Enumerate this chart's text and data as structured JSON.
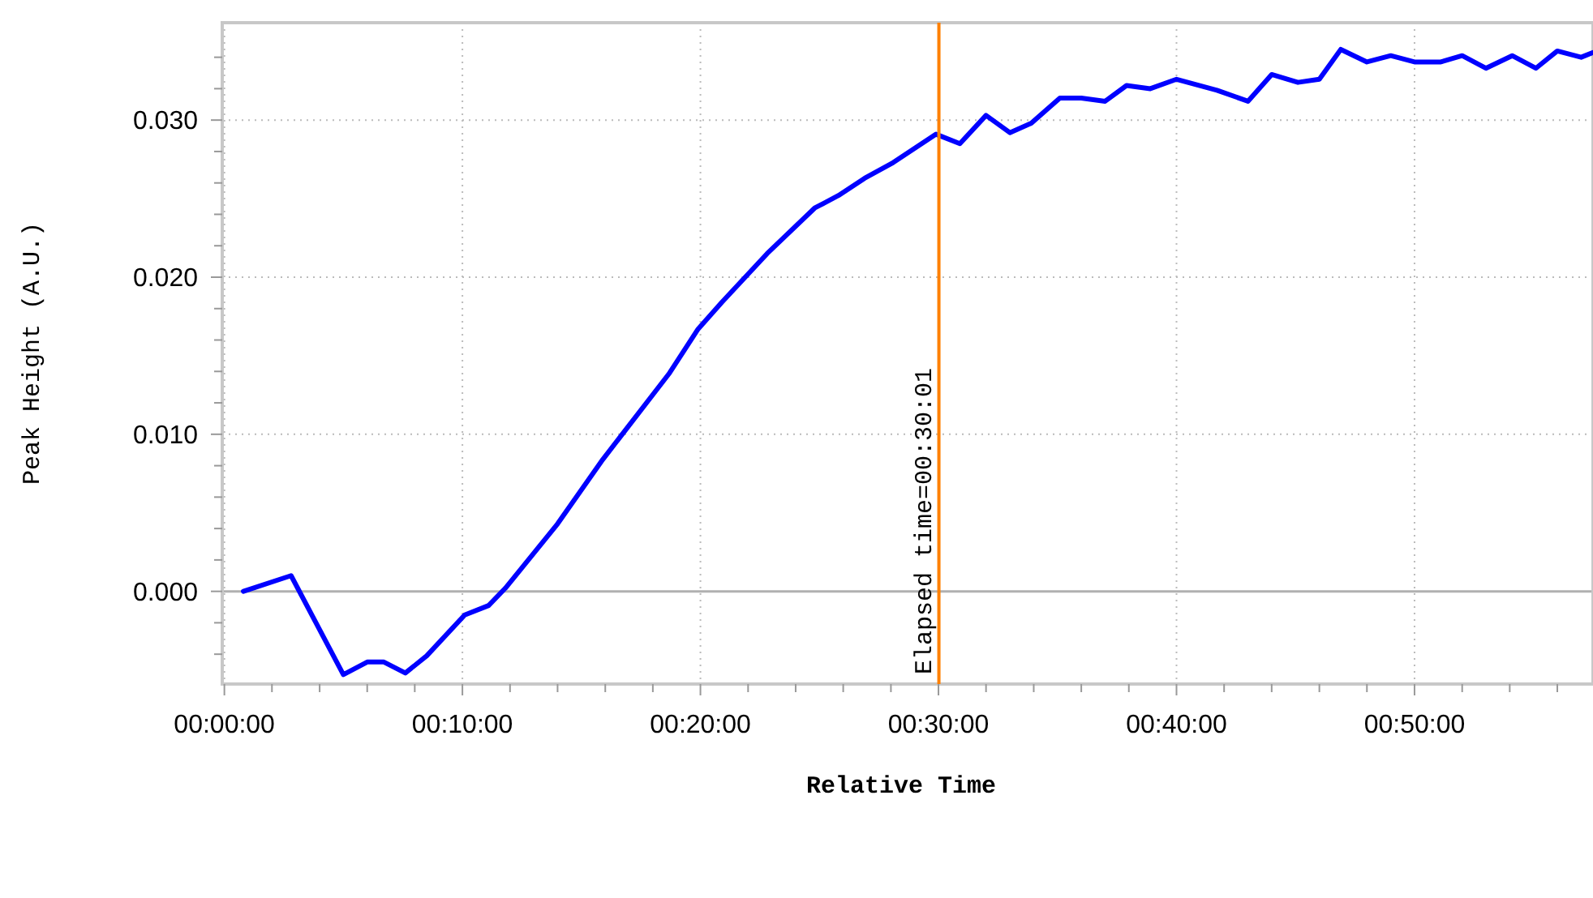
{
  "chart_data": {
    "type": "line",
    "xlabel": "Relative Time",
    "ylabel": "Peak Height (A.U.)",
    "x": [
      0.0133,
      0.0467,
      0.0833,
      0.1,
      0.1117,
      0.1267,
      0.1417,
      0.1683,
      0.185,
      0.1967,
      0.2333,
      0.265,
      0.3117,
      0.3317,
      0.3483,
      0.38,
      0.4133,
      0.43,
      0.4483,
      0.4683,
      0.4983,
      0.515,
      0.5333,
      0.55,
      0.565,
      0.585,
      0.6,
      0.6167,
      0.6317,
      0.6483,
      0.6667,
      0.695,
      0.7167,
      0.7333,
      0.7517,
      0.7667,
      0.7817,
      0.8,
      0.8167,
      0.8333,
      0.8517,
      0.8667,
      0.8833,
      0.9017,
      0.9183,
      0.9333,
      0.95,
      0.9583
    ],
    "series": [
      {
        "color": "#0000ff",
        "values": [
          0.0,
          0.001,
          -0.0053,
          -0.0045,
          -0.0045,
          -0.0052,
          -0.0041,
          -0.0015,
          -0.0009,
          0.0002,
          0.0043,
          0.0084,
          0.0139,
          0.0167,
          0.0184,
          0.0215,
          0.0244,
          0.0252,
          0.0263,
          0.0273,
          0.0291,
          0.0285,
          0.0303,
          0.0292,
          0.0298,
          0.0314,
          0.0314,
          0.0312,
          0.0322,
          0.032,
          0.0326,
          0.0319,
          0.0312,
          0.0329,
          0.0324,
          0.0326,
          0.0345,
          0.0337,
          0.0341,
          0.0337,
          0.0337,
          0.0341,
          0.0333,
          0.0341,
          0.0333,
          0.0344,
          0.034,
          0.0343
        ]
      }
    ],
    "xlim": [
      -0.0015,
      0.9583
    ],
    "ylim": [
      -0.0059,
      0.0362
    ],
    "xticks": [
      {
        "value": 0,
        "label": "00:00:00"
      },
      {
        "value": 0.0333,
        "label": null
      },
      {
        "value": 0.0667,
        "label": null
      },
      {
        "value": 0.1,
        "label": null
      },
      {
        "value": 0.1333,
        "label": null
      },
      {
        "value": 0.16667,
        "label": "00:10:00"
      },
      {
        "value": 0.2,
        "label": null
      },
      {
        "value": 0.2333,
        "label": null
      },
      {
        "value": 0.2667,
        "label": null
      },
      {
        "value": 0.3,
        "label": null
      },
      {
        "value": 0.33333,
        "label": "00:20:00"
      },
      {
        "value": 0.3667,
        "label": null
      },
      {
        "value": 0.4,
        "label": null
      },
      {
        "value": 0.4333,
        "label": null
      },
      {
        "value": 0.4667,
        "label": null
      },
      {
        "value": 0.5,
        "label": "00:30:00"
      },
      {
        "value": 0.5333,
        "label": null
      },
      {
        "value": 0.5667,
        "label": null
      },
      {
        "value": 0.6,
        "label": null
      },
      {
        "value": 0.6333,
        "label": null
      },
      {
        "value": 0.66667,
        "label": "00:40:00"
      },
      {
        "value": 0.7,
        "label": null
      },
      {
        "value": 0.7333,
        "label": null
      },
      {
        "value": 0.7667,
        "label": null
      },
      {
        "value": 0.8,
        "label": null
      },
      {
        "value": 0.83333,
        "label": "00:50:00"
      },
      {
        "value": 0.8667,
        "label": null
      },
      {
        "value": 0.9,
        "label": null
      },
      {
        "value": 0.9333,
        "label": null
      }
    ],
    "yticks": [
      {
        "value": -0.004,
        "label": null
      },
      {
        "value": -0.002,
        "label": null
      },
      {
        "value": 0,
        "label": "0.000"
      },
      {
        "value": 0.002,
        "label": null
      },
      {
        "value": 0.004,
        "label": null
      },
      {
        "value": 0.006,
        "label": null
      },
      {
        "value": 0.008,
        "label": null
      },
      {
        "value": 0.01,
        "label": "0.010"
      },
      {
        "value": 0.012,
        "label": null
      },
      {
        "value": 0.014,
        "label": null
      },
      {
        "value": 0.016,
        "label": null
      },
      {
        "value": 0.018,
        "label": null
      },
      {
        "value": 0.02,
        "label": "0.020"
      },
      {
        "value": 0.022,
        "label": null
      },
      {
        "value": 0.024,
        "label": null
      },
      {
        "value": 0.026,
        "label": null
      },
      {
        "value": 0.028,
        "label": null
      },
      {
        "value": 0.03,
        "label": "0.030"
      },
      {
        "value": 0.032,
        "label": null
      },
      {
        "value": 0.034,
        "label": null
      }
    ],
    "grid": true,
    "marker": "none",
    "line_style": "solid",
    "ref_lines": [
      {
        "axis": "x",
        "value": 0.5003,
        "label": "Elapsed time=00:30:01",
        "color": "#ff8000"
      }
    ]
  }
}
